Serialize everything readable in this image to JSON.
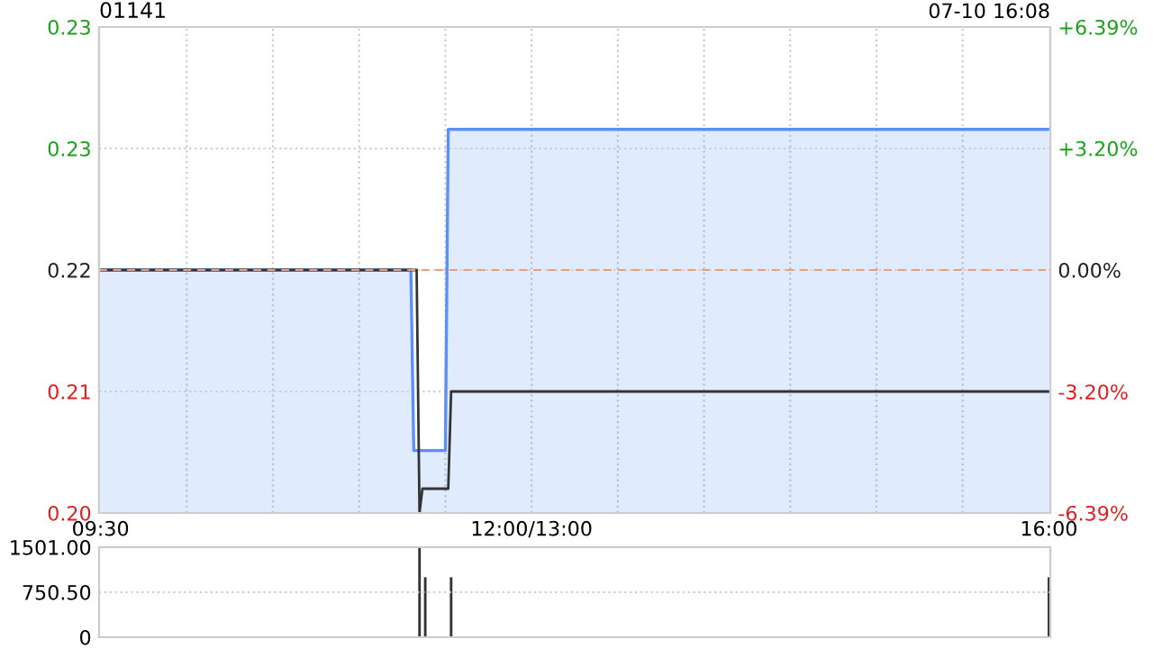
{
  "chart_data": [
    {
      "type": "area",
      "title": "01141",
      "annotations": [
        "07-10 16:08"
      ],
      "categories": [
        "09:30",
        null,
        null,
        null,
        null,
        null,
        null,
        null,
        null,
        null,
        null,
        null,
        null,
        null,
        null,
        null,
        null,
        null,
        null,
        null,
        null,
        null,
        null,
        null,
        null,
        null,
        null,
        null,
        null,
        null,
        null,
        null,
        null,
        null,
        null,
        null,
        null,
        null,
        null,
        null,
        null,
        null,
        null,
        null,
        null,
        null,
        null,
        null,
        null,
        null,
        null,
        null,
        null,
        null,
        null,
        null,
        null,
        null,
        null,
        null,
        null,
        null,
        null,
        null,
        null,
        null,
        null,
        null,
        null,
        null,
        null,
        null,
        null,
        null,
        null,
        null,
        null,
        null,
        null,
        null,
        null,
        null,
        null,
        null,
        null,
        null,
        null,
        null,
        null,
        null,
        null,
        null,
        null,
        null,
        null,
        null,
        null,
        null,
        null,
        null,
        null,
        null,
        null,
        null,
        null,
        null,
        null,
        null,
        null,
        null,
        null,
        null,
        null,
        null,
        null,
        null,
        null,
        null,
        null,
        null,
        null,
        null,
        null,
        null,
        null,
        null,
        null,
        null,
        null,
        null,
        null,
        null,
        null,
        null,
        null,
        null,
        null,
        null,
        null,
        null,
        null,
        null,
        null,
        null,
        null,
        null,
        null,
        null,
        null,
        null,
        "12:00/13:00",
        null,
        null,
        null,
        null,
        null,
        null,
        null,
        null,
        null,
        null,
        null,
        null,
        null,
        null,
        null,
        null,
        null,
        null,
        null,
        null,
        null,
        null,
        null,
        null,
        null,
        null,
        null,
        null,
        null,
        null,
        null,
        null,
        null,
        null,
        null,
        null,
        null,
        null,
        null,
        null,
        null,
        null,
        null,
        null,
        null,
        null,
        null,
        null,
        null,
        null,
        null,
        null,
        null,
        null,
        null,
        null,
        null,
        null,
        null,
        null,
        null,
        null,
        null,
        null,
        null,
        null,
        null,
        null,
        null,
        null,
        null,
        null,
        null,
        null,
        null,
        null,
        null,
        null,
        null,
        null,
        null,
        null,
        null,
        null,
        null,
        null,
        null,
        null,
        null,
        null,
        null,
        null,
        null,
        null,
        null,
        null,
        null,
        null,
        null,
        null,
        null,
        null,
        null,
        null,
        null,
        null,
        null,
        null,
        null,
        null,
        null,
        null,
        null,
        null,
        null,
        null,
        null,
        null,
        null,
        null,
        null,
        null,
        null,
        null,
        null,
        null,
        null,
        null,
        null,
        null,
        null,
        null,
        null,
        null,
        null,
        null,
        null,
        null,
        null,
        null,
        null,
        null,
        null,
        null,
        null,
        null,
        null,
        null,
        null,
        null,
        null,
        null,
        null,
        null,
        null,
        null,
        null,
        null,
        null,
        null,
        null,
        null,
        null,
        null,
        null,
        null,
        null,
        null,
        null,
        null,
        null,
        null,
        null,
        null,
        null,
        null,
        null,
        null,
        null,
        "16:00"
      ],
      "series": [
        {
          "type": "area",
          "color": "#5b8ff9",
          "values": [
            0.219,
            0.219,
            0.219,
            0.219,
            0.219,
            0.219,
            0.219,
            0.219,
            0.219,
            0.219,
            0.219,
            0.219,
            0.219,
            0.219,
            0.219,
            0.219,
            0.219,
            0.219,
            0.219,
            0.219,
            0.219,
            0.219,
            0.219,
            0.219,
            0.219,
            0.219,
            0.219,
            0.219,
            0.219,
            0.219,
            0.219,
            0.219,
            0.219,
            0.219,
            0.219,
            0.219,
            0.219,
            0.219,
            0.219,
            0.219,
            0.219,
            0.219,
            0.219,
            0.219,
            0.219,
            0.219,
            0.219,
            0.219,
            0.219,
            0.219,
            0.219,
            0.219,
            0.219,
            0.219,
            0.219,
            0.219,
            0.219,
            0.219,
            0.219,
            0.219,
            0.219,
            0.219,
            0.219,
            0.219,
            0.219,
            0.219,
            0.219,
            0.219,
            0.219,
            0.219,
            0.219,
            0.219,
            0.219,
            0.219,
            0.219,
            0.219,
            0.219,
            0.219,
            0.219,
            0.219,
            0.219,
            0.219,
            0.219,
            0.219,
            0.219,
            0.219,
            0.219,
            0.219,
            0.219,
            0.219,
            0.219,
            0.219,
            0.219,
            0.219,
            0.219,
            0.219,
            0.219,
            0.219,
            0.219,
            0.219,
            0.219,
            0.219,
            0.219,
            0.219,
            0.219,
            0.219,
            0.219,
            0.219,
            0.219,
            0.2086,
            0.2086,
            0.2086,
            0.2086,
            0.2086,
            0.2086,
            0.2086,
            0.2086,
            0.2086,
            0.2086,
            0.2086,
            0.2086,
            0.2271,
            0.2271,
            0.2271,
            0.2271,
            0.2271,
            0.2271,
            0.2271,
            0.2271,
            0.2271,
            0.2271,
            0.2271,
            0.2271,
            0.2271,
            0.2271,
            0.2271,
            0.2271,
            0.2271,
            0.2271,
            0.2271,
            0.2271,
            0.2271,
            0.2271,
            0.2271,
            0.2271,
            0.2271,
            0.2271,
            0.2271,
            0.2271,
            0.2271,
            0.2271,
            0.2271,
            0.2271,
            0.2271,
            0.2271,
            0.2271,
            0.2271,
            0.2271,
            0.2271,
            0.2271,
            0.2271,
            0.2271,
            0.2271,
            0.2271,
            0.2271,
            0.2271,
            0.2271,
            0.2271,
            0.2271,
            0.2271,
            0.2271,
            0.2271,
            0.2271,
            0.2271,
            0.2271,
            0.2271,
            0.2271,
            0.2271,
            0.2271,
            0.2271,
            0.2271,
            0.2271,
            0.2271,
            0.2271,
            0.2271,
            0.2271,
            0.2271,
            0.2271,
            0.2271,
            0.2271,
            0.2271,
            0.2271,
            0.2271,
            0.2271,
            0.2271,
            0.2271,
            0.2271,
            0.2271,
            0.2271,
            0.2271,
            0.2271,
            0.2271,
            0.2271,
            0.2271,
            0.2271,
            0.2271,
            0.2271,
            0.2271,
            0.2271,
            0.2271,
            0.2271,
            0.2271,
            0.2271,
            0.2271,
            0.2271,
            0.2271,
            0.2271,
            0.2271,
            0.2271,
            0.2271,
            0.2271,
            0.2271,
            0.2271,
            0.2271,
            0.2271,
            0.2271,
            0.2271,
            0.2271,
            0.2271,
            0.2271,
            0.2271,
            0.2271,
            0.2271,
            0.2271,
            0.2271,
            0.2271,
            0.2271,
            0.2271,
            0.2271,
            0.2271,
            0.2271,
            0.2271,
            0.2271,
            0.2271,
            0.2271,
            0.2271,
            0.2271,
            0.2271,
            0.2271,
            0.2271,
            0.2271,
            0.2271,
            0.2271,
            0.2271,
            0.2271,
            0.2271,
            0.2271,
            0.2271,
            0.2271,
            0.2271,
            0.2271,
            0.2271,
            0.2271,
            0.2271,
            0.2271,
            0.2271,
            0.2271,
            0.2271,
            0.2271,
            0.2271,
            0.2271,
            0.2271,
            0.2271,
            0.2271,
            0.2271,
            0.2271,
            0.2271,
            0.2271,
            0.2271,
            0.2271,
            0.2271,
            0.2271,
            0.2271,
            0.2271,
            0.2271,
            0.2271,
            0.2271,
            0.2271,
            0.2271,
            0.2271,
            0.2271,
            0.2271,
            0.2271,
            0.2271,
            0.2271,
            0.2271,
            0.2271,
            0.2271,
            0.2271,
            0.2271,
            0.2271,
            0.2271,
            0.2271,
            0.2271,
            0.2271,
            0.2271,
            0.2271,
            0.2271,
            0.2271,
            0.2271,
            0.2271,
            0.2271,
            0.2271,
            0.2271,
            0.2271,
            0.2271,
            0.2271,
            0.2271,
            0.2271,
            0.2271,
            0.2271,
            0.2271,
            0.2271,
            0.2271,
            0.2271,
            0.2271,
            0.2271,
            0.2271,
            0.2271,
            0.2271,
            0.2271
          ]
        },
        {
          "type": "line",
          "color": "#333333",
          "values": [
            0.219,
            0.219,
            0.219,
            0.219,
            0.219,
            0.219,
            0.219,
            0.219,
            0.219,
            0.219,
            0.219,
            0.219,
            0.219,
            0.219,
            0.219,
            0.219,
            0.219,
            0.219,
            0.219,
            0.219,
            0.219,
            0.219,
            0.219,
            0.219,
            0.219,
            0.219,
            0.219,
            0.219,
            0.219,
            0.219,
            0.219,
            0.219,
            0.219,
            0.219,
            0.219,
            0.219,
            0.219,
            0.219,
            0.219,
            0.219,
            0.219,
            0.219,
            0.219,
            0.219,
            0.219,
            0.219,
            0.219,
            0.219,
            0.219,
            0.219,
            0.219,
            0.219,
            0.219,
            0.219,
            0.219,
            0.219,
            0.219,
            0.219,
            0.219,
            0.219,
            0.219,
            0.219,
            0.219,
            0.219,
            0.219,
            0.219,
            0.219,
            0.219,
            0.219,
            0.219,
            0.219,
            0.219,
            0.219,
            0.219,
            0.219,
            0.219,
            0.219,
            0.219,
            0.219,
            0.219,
            0.219,
            0.219,
            0.219,
            0.219,
            0.219,
            0.219,
            0.219,
            0.219,
            0.219,
            0.219,
            0.219,
            0.219,
            0.219,
            0.219,
            0.219,
            0.219,
            0.219,
            0.219,
            0.219,
            0.219,
            0.219,
            0.219,
            0.219,
            0.219,
            0.219,
            0.219,
            0.219,
            0.219,
            0.219,
            0.219,
            0.219,
            0.205,
            0.2064,
            0.2064,
            0.2064,
            0.2064,
            0.2064,
            0.2064,
            0.2064,
            0.2064,
            0.2064,
            0.2064,
            0.212,
            0.212,
            0.212,
            0.212,
            0.212,
            0.212,
            0.212,
            0.212,
            0.212,
            0.212,
            0.212,
            0.212,
            0.212,
            0.212,
            0.212,
            0.212,
            0.212,
            0.212,
            0.212,
            0.212,
            0.212,
            0.212,
            0.212,
            0.212,
            0.212,
            0.212,
            0.212,
            0.212,
            0.212,
            0.212,
            0.212,
            0.212,
            0.212,
            0.212,
            0.212,
            0.212,
            0.212,
            0.212,
            0.212,
            0.212,
            0.212,
            0.212,
            0.212,
            0.212,
            0.212,
            0.212,
            0.212,
            0.212,
            0.212,
            0.212,
            0.212,
            0.212,
            0.212,
            0.212,
            0.212,
            0.212,
            0.212,
            0.212,
            0.212,
            0.212,
            0.212,
            0.212,
            0.212,
            0.212,
            0.212,
            0.212,
            0.212,
            0.212,
            0.212,
            0.212,
            0.212,
            0.212,
            0.212,
            0.212,
            0.212,
            0.212,
            0.212,
            0.212,
            0.212,
            0.212,
            0.212,
            0.212,
            0.212,
            0.212,
            0.212,
            0.212,
            0.212,
            0.212,
            0.212,
            0.212,
            0.212,
            0.212,
            0.212,
            0.212,
            0.212,
            0.212,
            0.212,
            0.212,
            0.212,
            0.212,
            0.212,
            0.212,
            0.212,
            0.212,
            0.212,
            0.212,
            0.212,
            0.212,
            0.212,
            0.212,
            0.212,
            0.212,
            0.212,
            0.212,
            0.212,
            0.212,
            0.212,
            0.212,
            0.212,
            0.212,
            0.212,
            0.212,
            0.212,
            0.212,
            0.212,
            0.212,
            0.212,
            0.212,
            0.212,
            0.212,
            0.212,
            0.212,
            0.212,
            0.212,
            0.212,
            0.212,
            0.212,
            0.212,
            0.212,
            0.212,
            0.212,
            0.212,
            0.212,
            0.212,
            0.212,
            0.212,
            0.212,
            0.212,
            0.212,
            0.212,
            0.212,
            0.212,
            0.212,
            0.212,
            0.212,
            0.212,
            0.212,
            0.212,
            0.212,
            0.212,
            0.212,
            0.212,
            0.212,
            0.212,
            0.212,
            0.212,
            0.212,
            0.212,
            0.212,
            0.212,
            0.212,
            0.212,
            0.212,
            0.212,
            0.212,
            0.212,
            0.212,
            0.212,
            0.212,
            0.212,
            0.212,
            0.212,
            0.212,
            0.212,
            0.212,
            0.212,
            0.212,
            0.212,
            0.212,
            0.212,
            0.212,
            0.212,
            0.212,
            0.212,
            0.212,
            0.212,
            0.212,
            0.212,
            0.212,
            0.212,
            0.212,
            0.212,
            0.212,
            0.212,
            0.212,
            0.212,
            0.212,
            0.212,
            0.212
          ]
        }
      ],
      "ylim": [
        0.205,
        0.233
      ],
      "yticks": [
        {
          "value": 0.205,
          "label": "0.20"
        },
        {
          "value": 0.212,
          "label": "0.21"
        },
        {
          "value": 0.219,
          "label": "0.22"
        },
        {
          "value": 0.226,
          "label": "0.23"
        },
        {
          "value": 0.233,
          "label": "0.23"
        }
      ],
      "y2lim": [
        -6.39,
        6.39
      ],
      "y2ticks": [
        {
          "value": -6.39,
          "label": "-6.39%"
        },
        {
          "value": -3.2,
          "label": "-3.20%"
        },
        {
          "value": 0,
          "label": "0.00%"
        },
        {
          "value": 3.2,
          "label": "+3.20%"
        },
        {
          "value": 6.39,
          "label": "+6.39%"
        }
      ],
      "ref_lines": [
        {
          "axis": "y",
          "value": 0.219,
          "color": "#e8a07a",
          "line_style": "dashed"
        }
      ],
      "grid": true
    },
    {
      "type": "bar",
      "color": "#333333",
      "categories": [
        null,
        null,
        null,
        null,
        null,
        null,
        null,
        null,
        null,
        null,
        null,
        null,
        null,
        null,
        null,
        null,
        null,
        null,
        null,
        null,
        null,
        null,
        null,
        null,
        null,
        null,
        null,
        null,
        null,
        null,
        null,
        null,
        null,
        null,
        null,
        null,
        null,
        null,
        null,
        null,
        null,
        null,
        null,
        null,
        null,
        null,
        null,
        null,
        null,
        null,
        null,
        null,
        null,
        null,
        null,
        null,
        null,
        null,
        null,
        null,
        null,
        null,
        null,
        null,
        null,
        null,
        null,
        null,
        null,
        null,
        null,
        null,
        null,
        null,
        null,
        null,
        null,
        null,
        null,
        null,
        null,
        null,
        null,
        null,
        null,
        null,
        null,
        null,
        null,
        null,
        null,
        null,
        null,
        null,
        null,
        null,
        null,
        null,
        null,
        null,
        null,
        null,
        null,
        null,
        null,
        null,
        null,
        null,
        null,
        null,
        null,
        null,
        null,
        null,
        null,
        null,
        null,
        null,
        null,
        null,
        null,
        null,
        null,
        null,
        null,
        null,
        null,
        null,
        null,
        null,
        null,
        null,
        null,
        null,
        null,
        null,
        null,
        null,
        null,
        null,
        null,
        null,
        null,
        null,
        null,
        null,
        null,
        null,
        null,
        null,
        null,
        null,
        null,
        null,
        null,
        null,
        null,
        null,
        null,
        null,
        null,
        null,
        null,
        null,
        null,
        null,
        null,
        null,
        null,
        null,
        null,
        null,
        null,
        null,
        null,
        null,
        null,
        null,
        null,
        null,
        null,
        null,
        null,
        null,
        null,
        null,
        null,
        null,
        null,
        null,
        null,
        null,
        null,
        null,
        null,
        null,
        null,
        null,
        null,
        null,
        null,
        null,
        null,
        null,
        null,
        null,
        null,
        null,
        null,
        null,
        null,
        null,
        null,
        null,
        null,
        null,
        null,
        null,
        null,
        null,
        null,
        null,
        null,
        null,
        null,
        null,
        null,
        null,
        null,
        null,
        null,
        null,
        null,
        null,
        null,
        null,
        null,
        null,
        null,
        null,
        null,
        null,
        null,
        null,
        null,
        null,
        null,
        null,
        null,
        null,
        null,
        null,
        null,
        null,
        null,
        null,
        null,
        null,
        null,
        null,
        null,
        null,
        null,
        null,
        null,
        null,
        null,
        null,
        null,
        null,
        null,
        null,
        null,
        null,
        null,
        null,
        null,
        null,
        null,
        null,
        null,
        null,
        null,
        null,
        null,
        null,
        null,
        null,
        null,
        null,
        null,
        null,
        null,
        null,
        null,
        null,
        null,
        null,
        null,
        null,
        null,
        null,
        null,
        null,
        null,
        null,
        null,
        null,
        null,
        null,
        null,
        null,
        null,
        null,
        null,
        null,
        null,
        null,
        null,
        null,
        null,
        null,
        null,
        null,
        null,
        null,
        null,
        null,
        null,
        null,
        null
      ],
      "values": [
        null,
        null,
        null,
        null,
        null,
        null,
        null,
        null,
        null,
        null,
        null,
        null,
        null,
        null,
        null,
        null,
        null,
        null,
        null,
        null,
        null,
        null,
        null,
        null,
        null,
        null,
        null,
        null,
        null,
        null,
        null,
        null,
        null,
        null,
        null,
        null,
        null,
        null,
        null,
        null,
        null,
        null,
        null,
        null,
        null,
        null,
        null,
        null,
        null,
        null,
        null,
        null,
        null,
        null,
        null,
        null,
        null,
        null,
        null,
        null,
        null,
        null,
        null,
        null,
        null,
        null,
        null,
        null,
        null,
        null,
        null,
        null,
        null,
        null,
        null,
        null,
        null,
        null,
        null,
        null,
        null,
        null,
        null,
        null,
        null,
        null,
        null,
        null,
        null,
        null,
        null,
        null,
        null,
        null,
        null,
        null,
        null,
        null,
        null,
        null,
        null,
        null,
        null,
        null,
        null,
        null,
        null,
        null,
        null,
        null,
        null,
        1501,
        null,
        1000,
        null,
        null,
        null,
        null,
        null,
        null,
        null,
        null,
        1000,
        null,
        null,
        null,
        null,
        null,
        null,
        null,
        null,
        null,
        null,
        null,
        null,
        null,
        null,
        null,
        null,
        null,
        null,
        null,
        null,
        null,
        null,
        null,
        null,
        null,
        null,
        null,
        null,
        null,
        null,
        null,
        null,
        null,
        null,
        null,
        null,
        null,
        null,
        null,
        null,
        null,
        null,
        null,
        null,
        null,
        null,
        null,
        null,
        null,
        null,
        null,
        null,
        null,
        null,
        null,
        null,
        null,
        null,
        null,
        null,
        null,
        null,
        null,
        null,
        null,
        null,
        null,
        null,
        null,
        null,
        null,
        null,
        null,
        null,
        null,
        null,
        null,
        null,
        null,
        null,
        null,
        null,
        null,
        null,
        null,
        null,
        null,
        null,
        null,
        null,
        null,
        null,
        null,
        null,
        null,
        null,
        null,
        null,
        null,
        null,
        null,
        null,
        null,
        null,
        null,
        null,
        null,
        null,
        null,
        null,
        null,
        null,
        null,
        null,
        null,
        null,
        null,
        null,
        null,
        null,
        null,
        null,
        null,
        null,
        null,
        null,
        null,
        null,
        null,
        null,
        null,
        null,
        null,
        null,
        null,
        null,
        null,
        null,
        null,
        null,
        null,
        null,
        null,
        null,
        null,
        null,
        null,
        null,
        null,
        null,
        null,
        null,
        null,
        null,
        null,
        null,
        null,
        null,
        null,
        null,
        null,
        null,
        null,
        null,
        null,
        null,
        null,
        null,
        null,
        null,
        null,
        null,
        null,
        null,
        null,
        null,
        null,
        null,
        null,
        null,
        null,
        null,
        null,
        null,
        null,
        null,
        null,
        null,
        null,
        null,
        null,
        null,
        null,
        null,
        null,
        null,
        null,
        null,
        null,
        null,
        null,
        null,
        null,
        null,
        null,
        null,
        null,
        1000
      ],
      "ylim": [
        0,
        1501
      ],
      "yticks": [
        0,
        {
          "value": 750.5,
          "label": "750.50"
        },
        {
          "value": 1501,
          "label": "1501.00"
        }
      ],
      "tick_labels": "y",
      "grid": "y"
    }
  ]
}
